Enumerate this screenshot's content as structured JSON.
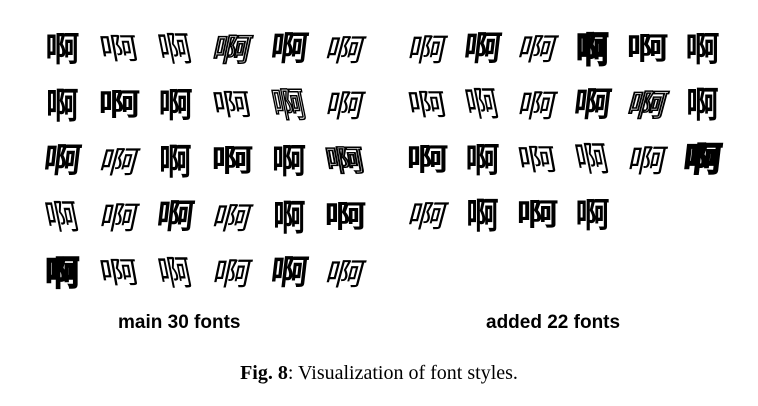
{
  "figure": {
    "character": "啊",
    "main_label": "main 30 fonts",
    "added_label": "added 22 fonts",
    "main_count": 30,
    "added_count": 22,
    "caption_number": "Fig. 8",
    "caption_text": ": Visualization of font styles."
  },
  "colors": {
    "ink": "#000000",
    "background": "#ffffff"
  }
}
